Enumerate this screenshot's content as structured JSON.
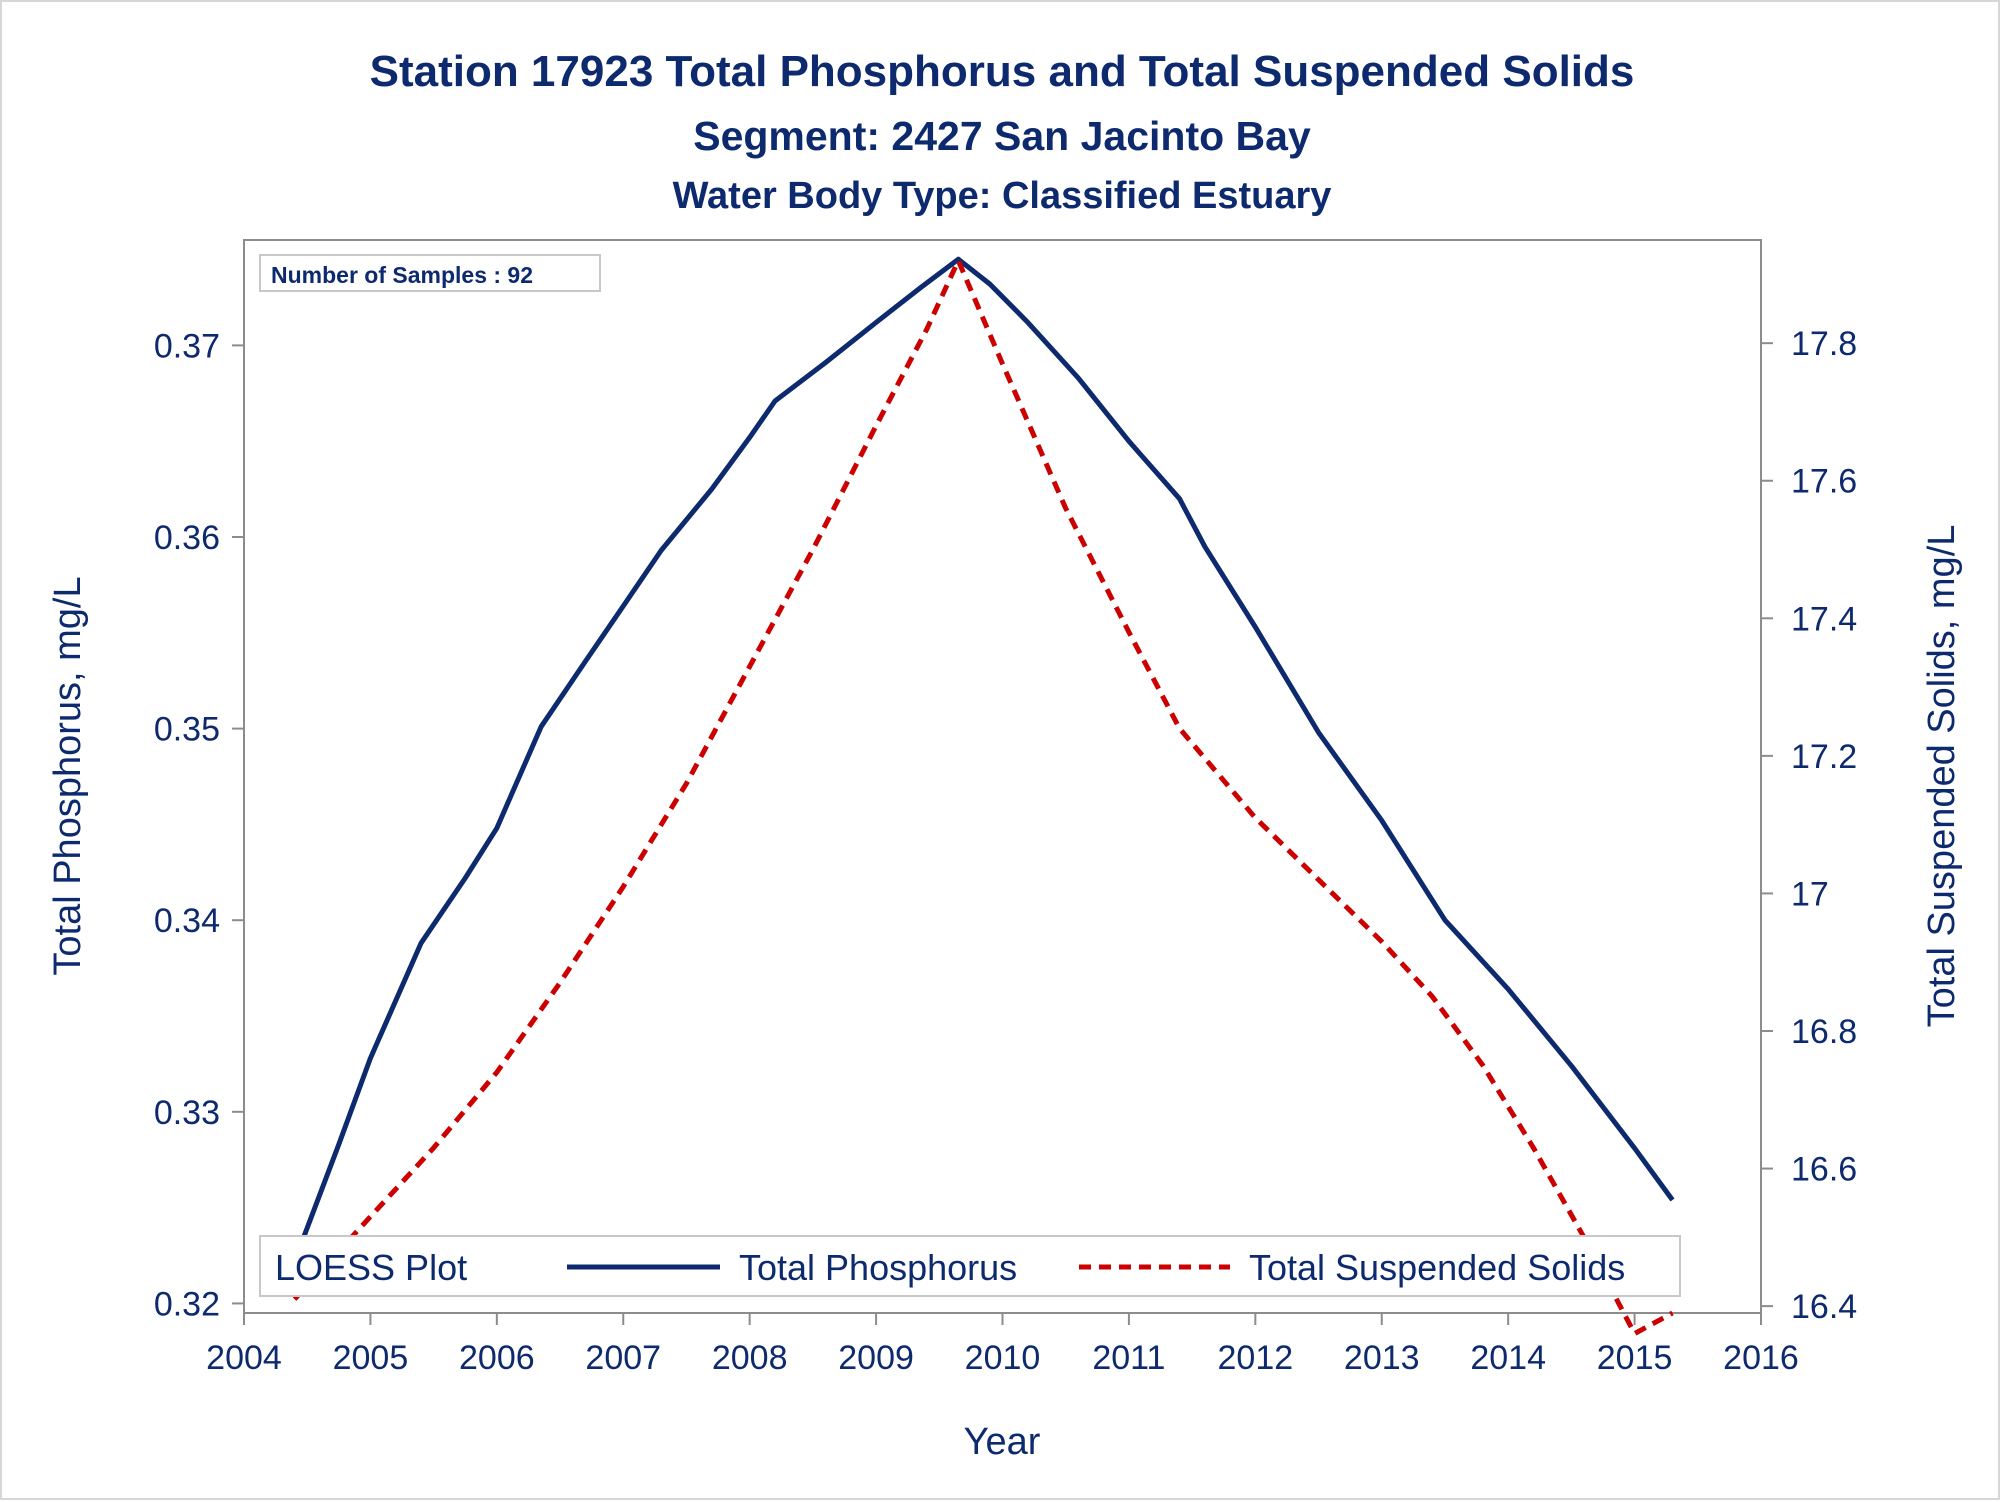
{
  "chart_data": {
    "type": "line",
    "title": "Station 17923  Total Phosphorus and Total Suspended Solids",
    "subtitle": "Segment: 2427  San Jacinto Bay",
    "subtitle2": "Water Body Type: Classified Estuary",
    "xlabel": "Year",
    "ylabel_left": "Total Phosphorus, mg/L",
    "ylabel_right": "Total Suspended Solids, mg/L",
    "xlim": [
      2004,
      2016
    ],
    "ylim_left": [
      0.3195,
      0.3755
    ],
    "ylim_right": [
      16.39,
      17.95
    ],
    "x_ticks": [
      2004,
      2005,
      2006,
      2007,
      2008,
      2009,
      2010,
      2011,
      2012,
      2013,
      2014,
      2015,
      2016
    ],
    "y_left_ticks": [
      "0.32",
      "0.33",
      "0.34",
      "0.35",
      "0.36",
      "0.37"
    ],
    "y_right_ticks": [
      "16.4",
      "16.6",
      "16.8",
      "17",
      "17.2",
      "17.4",
      "17.6",
      "17.8"
    ],
    "grid": false,
    "annotation": "Number of Samples : 92",
    "legend": {
      "title": "LOESS Plot",
      "position": "bottom-inside",
      "entries": [
        "Total Phosphorus",
        "Total Suspended Solids"
      ]
    },
    "series": [
      {
        "name": "Total Phosphorus",
        "axis": "left",
        "color": "#0d2a6e",
        "style": "solid",
        "x": [
          2004.4,
          2004.75,
          2005.0,
          2005.4,
          2005.75,
          2006.0,
          2006.35,
          2006.7,
          2007.0,
          2007.3,
          2007.7,
          2008.0,
          2008.2,
          2008.6,
          2009.0,
          2009.35,
          2009.65,
          2009.9,
          2010.2,
          2010.6,
          2011.0,
          2011.4,
          2011.6,
          2012.0,
          2012.5,
          2013.0,
          2013.5,
          2014.0,
          2014.5,
          2015.0,
          2015.3
        ],
        "y": [
          0.3222,
          0.3283,
          0.3328,
          0.3388,
          0.3422,
          0.3448,
          0.3501,
          0.3535,
          0.3564,
          0.3593,
          0.3625,
          0.3652,
          0.3671,
          0.3691,
          0.3712,
          0.373,
          0.3745,
          0.3732,
          0.3712,
          0.3683,
          0.365,
          0.362,
          0.3595,
          0.3553,
          0.3498,
          0.3452,
          0.34,
          0.3364,
          0.3324,
          0.3281,
          0.3254
        ]
      },
      {
        "name": "Total Suspended Solids",
        "axis": "right",
        "color": "#cc0000",
        "style": "dashed",
        "x": [
          2004.4,
          2005.0,
          2005.5,
          2006.0,
          2006.5,
          2007.0,
          2007.5,
          2008.0,
          2008.5,
          2009.0,
          2009.4,
          2009.65,
          2010.0,
          2010.5,
          2011.0,
          2011.4,
          2012.0,
          2012.5,
          2013.0,
          2013.4,
          2013.8,
          2014.2,
          2014.6,
          2015.0,
          2015.3
        ],
        "y": [
          16.41,
          16.53,
          16.63,
          16.74,
          16.87,
          17.01,
          17.16,
          17.33,
          17.5,
          17.68,
          17.82,
          17.92,
          17.77,
          17.56,
          17.38,
          17.24,
          17.11,
          17.02,
          16.93,
          16.85,
          16.75,
          16.63,
          16.5,
          16.36,
          16.39
        ]
      }
    ]
  }
}
